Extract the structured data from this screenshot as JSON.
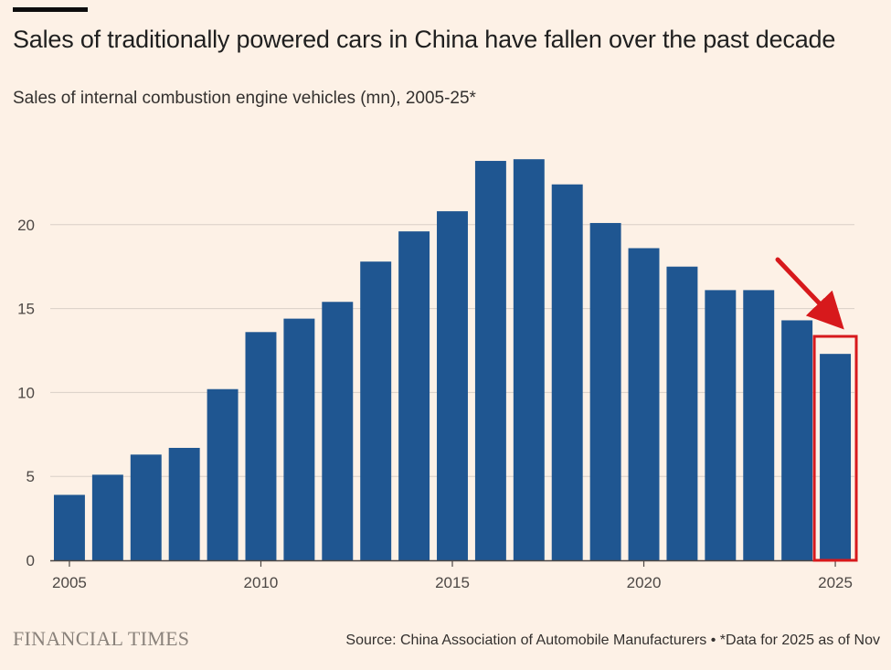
{
  "header": {
    "title": "Sales of traditionally powered cars in China have fallen over the past decade",
    "subtitle": "Sales of internal combustion engine vehicles (mn), 2005-25*"
  },
  "footer": {
    "brand": "FINANCIAL TIMES",
    "source": "Source: China Association of Automobile Manufacturers • *Data for 2025 as of Nov"
  },
  "colors": {
    "background": "#fdf1e6",
    "bar": "#1f5691",
    "highlight": "#d7191c",
    "grid": "#d9cfc7"
  },
  "chart_data": {
    "type": "bar",
    "title": "Sales of traditionally powered cars in China have fallen over the past decade",
    "subtitle": "Sales of internal combustion engine vehicles (mn), 2005-25*",
    "xlabel": "",
    "ylabel": "",
    "categories": [
      "2005",
      "2006",
      "2007",
      "2008",
      "2009",
      "2010",
      "2011",
      "2012",
      "2013",
      "2014",
      "2015",
      "2016",
      "2017",
      "2018",
      "2019",
      "2020",
      "2021",
      "2022",
      "2023",
      "2024",
      "2025"
    ],
    "values": [
      3.9,
      5.1,
      6.3,
      6.7,
      10.2,
      13.6,
      14.4,
      15.4,
      17.8,
      19.6,
      20.8,
      23.8,
      23.9,
      22.4,
      20.1,
      18.6,
      17.5,
      16.1,
      16.1,
      14.3,
      12.3
    ],
    "ylim": [
      0,
      25
    ],
    "yticks": [
      0,
      5,
      10,
      15,
      20
    ],
    "xticks": [
      "2005",
      "2010",
      "2015",
      "2020",
      "2025"
    ],
    "grid": true,
    "highlight": {
      "category": "2025",
      "annotation": "red arrow and box"
    }
  }
}
